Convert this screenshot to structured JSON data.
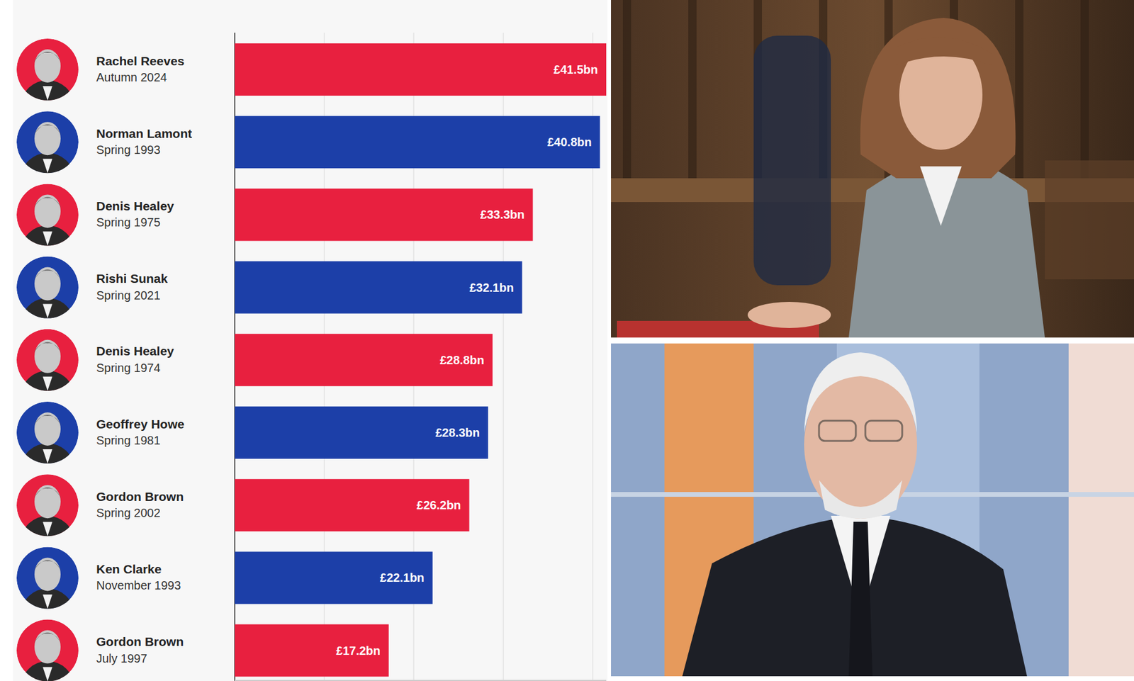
{
  "chart_data": {
    "type": "bar",
    "orientation": "horizontal",
    "categories": [
      [
        "Rachel Reeves",
        "Autumn 2024"
      ],
      [
        "Norman Lamont",
        "Spring 1993"
      ],
      [
        "Denis Healey",
        "Spring 1975"
      ],
      [
        "Rishi Sunak",
        "Spring 2021"
      ],
      [
        "Denis Healey",
        "Spring 1974"
      ],
      [
        "Geoffrey Howe",
        "Spring 1981"
      ],
      [
        "Gordon Brown",
        "Spring 2002"
      ],
      [
        "Ken Clarke",
        "November 1993"
      ],
      [
        "Gordon Brown",
        "July 1997"
      ]
    ],
    "values": [
      41.5,
      40.8,
      33.3,
      32.1,
      28.8,
      28.3,
      26.2,
      22.1,
      17.2
    ],
    "value_labels": [
      "£41.5bn",
      "£40.8bn",
      "£33.3bn",
      "£32.1bn",
      "£28.8bn",
      "£28.3bn",
      "£26.2bn",
      "£22.1bn",
      "£17.2bn"
    ],
    "colors": [
      "#e8203f",
      "#1c3fa8",
      "#e8203f",
      "#1c3fa8",
      "#e8203f",
      "#1c3fa8",
      "#e8203f",
      "#1c3fa8",
      "#e8203f"
    ],
    "xlim": [
      0,
      41.5
    ],
    "xticks": [
      0,
      10,
      20,
      30,
      40
    ],
    "grid": true,
    "tick_labels": false,
    "data_labels": true
  }
}
